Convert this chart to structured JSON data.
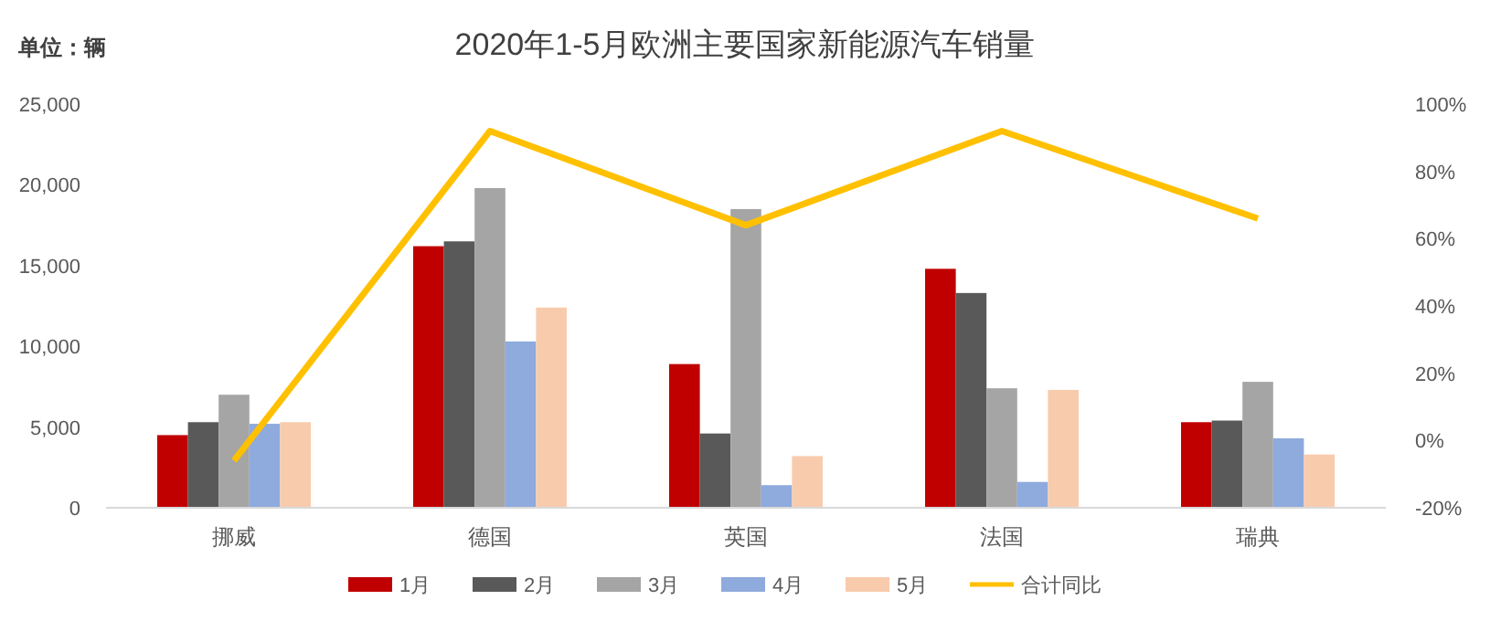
{
  "chart_data": {
    "type": "bar",
    "title": "2020年1-5月欧洲主要国家新能源汽车销量",
    "annotations": [
      "单位：辆"
    ],
    "categories": [
      "挪威",
      "德国",
      "英国",
      "法国",
      "瑞典"
    ],
    "series": [
      {
        "name": "1月",
        "color": "#c00000",
        "values": [
          4500,
          16200,
          8900,
          14800,
          5300
        ]
      },
      {
        "name": "2月",
        "color": "#595959",
        "values": [
          5300,
          16500,
          4600,
          13300,
          5400
        ]
      },
      {
        "name": "3月",
        "color": "#a5a5a5",
        "values": [
          7000,
          19800,
          18500,
          7400,
          7800
        ]
      },
      {
        "name": "4月",
        "color": "#8faadc",
        "values": [
          5200,
          10300,
          1400,
          1600,
          4300
        ]
      },
      {
        "name": "5月",
        "color": "#f8cbad",
        "values": [
          5300,
          12400,
          3200,
          7300,
          3300
        ]
      },
      {
        "name": "合计同比",
        "type": "line",
        "axis": "y2",
        "color": "#ffc000",
        "values": [
          -6,
          92,
          64,
          92,
          66
        ]
      }
    ],
    "ylim": [
      0,
      25000
    ],
    "yticks": [
      {
        "value": 0,
        "label": "0"
      },
      {
        "value": 5000,
        "label": "5,000"
      },
      {
        "value": 10000,
        "label": "10,000"
      },
      {
        "value": 15000,
        "label": "15,000"
      },
      {
        "value": 20000,
        "label": "20,000"
      },
      {
        "value": 25000,
        "label": "25,000"
      }
    ],
    "y2lim": [
      -20,
      100
    ],
    "y2ticks": [
      {
        "value": -20,
        "label": "-20%"
      },
      {
        "value": 0,
        "label": "0%"
      },
      {
        "value": 20,
        "label": "20%"
      },
      {
        "value": 40,
        "label": "40%"
      },
      {
        "value": 60,
        "label": "60%"
      },
      {
        "value": 80,
        "label": "80%"
      },
      {
        "value": 100,
        "label": "100%"
      }
    ],
    "legend": "bottom",
    "marker": "none"
  }
}
